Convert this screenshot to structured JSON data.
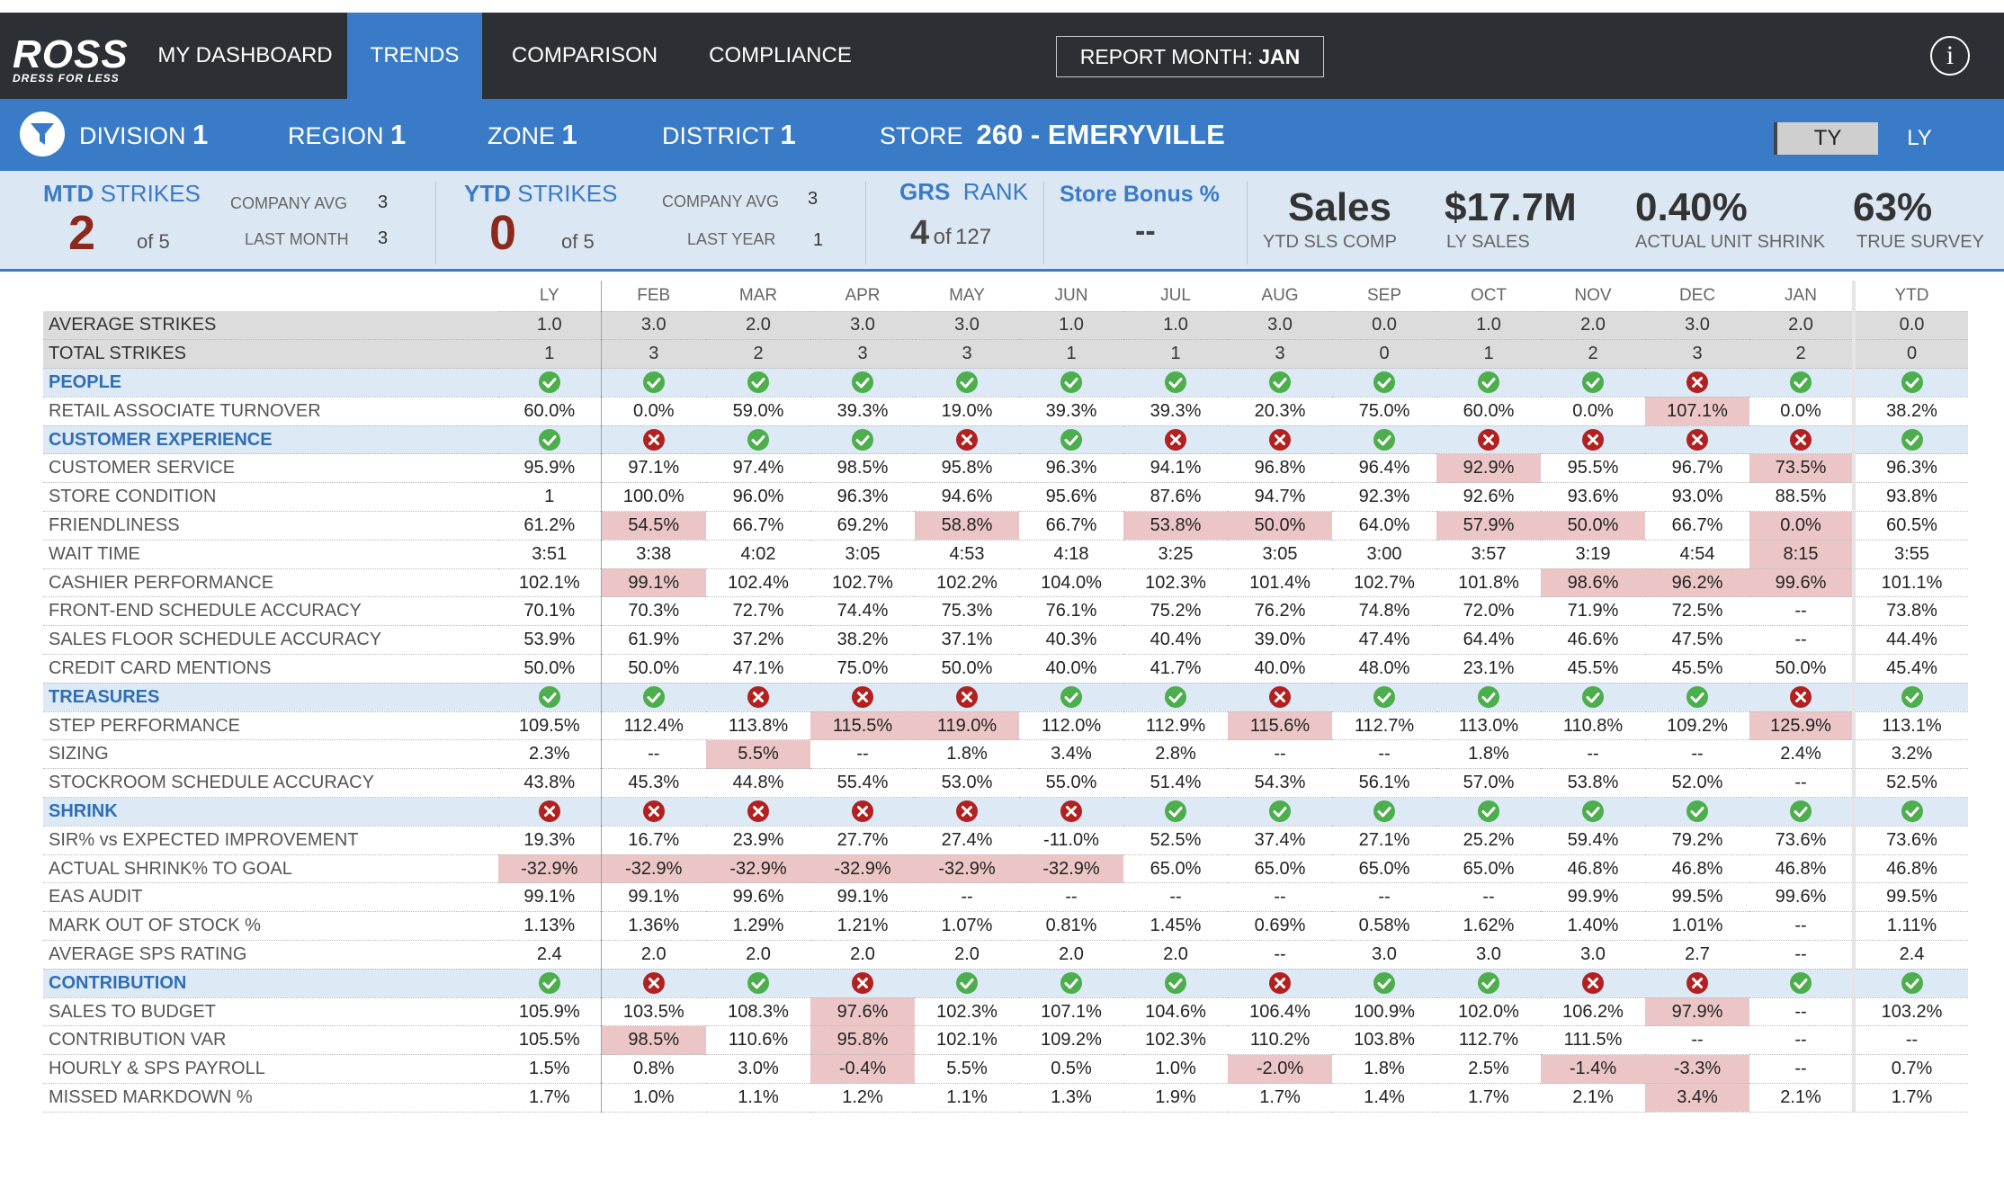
{
  "nav": {
    "logo_text": "ROSS",
    "logo_tagline": "DRESS FOR LESS",
    "items": [
      "MY DASHBOARD",
      "TRENDS",
      "COMPARISON",
      "COMPLIANCE"
    ],
    "active": "TRENDS",
    "report_month_label": "REPORT MONTH:",
    "report_month_value": "JAN",
    "info_icon": "info-icon"
  },
  "filters": {
    "division_label": "DIVISION",
    "division_value": "1",
    "region_label": "REGION",
    "region_value": "1",
    "zone_label": "ZONE",
    "zone_value": "1",
    "district_label": "DISTRICT",
    "district_value": "1",
    "store_label": "STORE",
    "store_value": "260 - EMERYVILLE",
    "ty_label": "TY",
    "ly_label": "LY"
  },
  "kpis": {
    "mtd_title_a": "MTD",
    "mtd_title_b": "STRIKES",
    "mtd_value": "2",
    "mtd_of": "of 5",
    "mtd_company_avg_label": "COMPANY AVG",
    "mtd_company_avg": "3",
    "mtd_last_month_label": "LAST MONTH",
    "mtd_last_month": "3",
    "ytd_title_a": "YTD",
    "ytd_title_b": "STRIKES",
    "ytd_value": "0",
    "ytd_of": "of 5",
    "ytd_company_avg_label": "COMPANY AVG",
    "ytd_company_avg": "3",
    "ytd_last_year_label": "LAST YEAR",
    "ytd_last_year": "1",
    "grs_title_a": "GRS",
    "grs_title_b": "RANK",
    "grs_rank": "4",
    "grs_of": "of",
    "grs_total": "127",
    "bonus_title": "Store Bonus %",
    "bonus_value": "--",
    "sales_big": "Sales",
    "sales_sub": "YTD SLS COMP",
    "ly_sales_big": "$17.7M",
    "ly_sales_sub": "LY SALES",
    "shrink_big": "0.40%",
    "shrink_sub": "ACTUAL UNIT SHRINK",
    "survey_big": "63%",
    "survey_sub": "TRUE SURVEY"
  },
  "table": {
    "columns": [
      "LY",
      "FEB",
      "MAR",
      "APR",
      "MAY",
      "JUN",
      "JUL",
      "AUG",
      "SEP",
      "OCT",
      "NOV",
      "DEC",
      "JAN",
      "YTD"
    ],
    "rows": [
      {
        "label": "AVERAGE STRIKES",
        "type": "gray",
        "values": [
          "1.0",
          "3.0",
          "2.0",
          "3.0",
          "3.0",
          "1.0",
          "1.0",
          "3.0",
          "0.0",
          "1.0",
          "2.0",
          "3.0",
          "2.0",
          "0.0"
        ]
      },
      {
        "label": "TOTAL STRIKES",
        "type": "gray",
        "values": [
          "1",
          "3",
          "2",
          "3",
          "3",
          "1",
          "1",
          "3",
          "0",
          "1",
          "2",
          "3",
          "2",
          "0"
        ]
      },
      {
        "label": "PEOPLE",
        "type": "section",
        "values": [
          "ok",
          "ok",
          "ok",
          "ok",
          "ok",
          "ok",
          "ok",
          "ok",
          "ok",
          "ok",
          "ok",
          "x",
          "ok",
          "ok"
        ]
      },
      {
        "label": "RETAIL ASSOCIATE TURNOVER",
        "values": [
          "60.0%",
          "0.0%",
          "59.0%",
          "39.3%",
          "19.0%",
          "39.3%",
          "39.3%",
          "20.3%",
          "75.0%",
          "60.0%",
          "0.0%",
          "107.1%",
          "0.0%",
          "38.2%"
        ],
        "bad": [
          11
        ]
      },
      {
        "label": "CUSTOMER EXPERIENCE",
        "type": "section",
        "values": [
          "ok",
          "x",
          "ok",
          "ok",
          "x",
          "ok",
          "x",
          "x",
          "ok",
          "x",
          "x",
          "x",
          "x",
          "ok"
        ]
      },
      {
        "label": "CUSTOMER SERVICE",
        "values": [
          "95.9%",
          "97.1%",
          "97.4%",
          "98.5%",
          "95.8%",
          "96.3%",
          "94.1%",
          "96.8%",
          "96.4%",
          "92.9%",
          "95.5%",
          "96.7%",
          "73.5%",
          "96.3%"
        ],
        "bad": [
          9,
          12
        ]
      },
      {
        "label": "STORE CONDITION",
        "values": [
          "1",
          "100.0%",
          "96.0%",
          "96.3%",
          "94.6%",
          "95.6%",
          "87.6%",
          "94.7%",
          "92.3%",
          "92.6%",
          "93.6%",
          "93.0%",
          "88.5%",
          "93.8%"
        ],
        "bad": []
      },
      {
        "label": "FRIENDLINESS",
        "values": [
          "61.2%",
          "54.5%",
          "66.7%",
          "69.2%",
          "58.8%",
          "66.7%",
          "53.8%",
          "50.0%",
          "64.0%",
          "57.9%",
          "50.0%",
          "66.7%",
          "0.0%",
          "60.5%"
        ],
        "bad": [
          1,
          4,
          6,
          7,
          9,
          10,
          12
        ]
      },
      {
        "label": "WAIT TIME",
        "values": [
          "3:51",
          "3:38",
          "4:02",
          "3:05",
          "4:53",
          "4:18",
          "3:25",
          "3:05",
          "3:00",
          "3:57",
          "3:19",
          "4:54",
          "8:15",
          "3:55"
        ],
        "bad": [
          12
        ]
      },
      {
        "label": "CASHIER PERFORMANCE",
        "values": [
          "102.1%",
          "99.1%",
          "102.4%",
          "102.7%",
          "102.2%",
          "104.0%",
          "102.3%",
          "101.4%",
          "102.7%",
          "101.8%",
          "98.6%",
          "96.2%",
          "99.6%",
          "101.1%"
        ],
        "bad": [
          1,
          10,
          11,
          12
        ]
      },
      {
        "label": "FRONT-END SCHEDULE ACCURACY",
        "values": [
          "70.1%",
          "70.3%",
          "72.7%",
          "74.4%",
          "75.3%",
          "76.1%",
          "75.2%",
          "76.2%",
          "74.8%",
          "72.0%",
          "71.9%",
          "72.5%",
          "--",
          "73.8%"
        ],
        "bad": []
      },
      {
        "label": "SALES FLOOR SCHEDULE ACCURACY",
        "values": [
          "53.9%",
          "61.9%",
          "37.2%",
          "38.2%",
          "37.1%",
          "40.3%",
          "40.4%",
          "39.0%",
          "47.4%",
          "64.4%",
          "46.6%",
          "47.5%",
          "--",
          "44.4%"
        ],
        "bad": []
      },
      {
        "label": "CREDIT CARD MENTIONS",
        "values": [
          "50.0%",
          "50.0%",
          "47.1%",
          "75.0%",
          "50.0%",
          "40.0%",
          "41.7%",
          "40.0%",
          "48.0%",
          "23.1%",
          "45.5%",
          "45.5%",
          "50.0%",
          "45.4%"
        ],
        "bad": []
      },
      {
        "label": "TREASURES",
        "type": "section",
        "values": [
          "ok",
          "ok",
          "x",
          "x",
          "x",
          "ok",
          "ok",
          "x",
          "ok",
          "ok",
          "ok",
          "ok",
          "x",
          "ok"
        ]
      },
      {
        "label": "STEP PERFORMANCE",
        "values": [
          "109.5%",
          "112.4%",
          "113.8%",
          "115.5%",
          "119.0%",
          "112.0%",
          "112.9%",
          "115.6%",
          "112.7%",
          "113.0%",
          "110.8%",
          "109.2%",
          "125.9%",
          "113.1%"
        ],
        "bad": [
          3,
          4,
          7,
          12
        ]
      },
      {
        "label": "SIZING",
        "values": [
          "2.3%",
          "--",
          "5.5%",
          "--",
          "1.8%",
          "3.4%",
          "2.8%",
          "--",
          "--",
          "1.8%",
          "--",
          "--",
          "2.4%",
          "3.2%"
        ],
        "bad": [
          2
        ]
      },
      {
        "label": "STOCKROOM SCHEDULE ACCURACY",
        "values": [
          "43.8%",
          "45.3%",
          "44.8%",
          "55.4%",
          "53.0%",
          "55.0%",
          "51.4%",
          "54.3%",
          "56.1%",
          "57.0%",
          "53.8%",
          "52.0%",
          "--",
          "52.5%"
        ],
        "bad": []
      },
      {
        "label": "SHRINK",
        "type": "section",
        "values": [
          "x",
          "x",
          "x",
          "x",
          "x",
          "x",
          "ok",
          "ok",
          "ok",
          "ok",
          "ok",
          "ok",
          "ok",
          "ok"
        ]
      },
      {
        "label": "SIR% vs EXPECTED IMPROVEMENT",
        "values": [
          "19.3%",
          "16.7%",
          "23.9%",
          "27.7%",
          "27.4%",
          "-11.0%",
          "52.5%",
          "37.4%",
          "27.1%",
          "25.2%",
          "59.4%",
          "79.2%",
          "73.6%",
          "73.6%"
        ],
        "bad": []
      },
      {
        "label": "ACTUAL SHRINK% TO GOAL",
        "values": [
          "-32.9%",
          "-32.9%",
          "-32.9%",
          "-32.9%",
          "-32.9%",
          "-32.9%",
          "65.0%",
          "65.0%",
          "65.0%",
          "65.0%",
          "46.8%",
          "46.8%",
          "46.8%",
          "46.8%"
        ],
        "bad": [
          0,
          1,
          2,
          3,
          4,
          5
        ]
      },
      {
        "label": "EAS AUDIT",
        "values": [
          "99.1%",
          "99.1%",
          "99.6%",
          "99.1%",
          "--",
          "--",
          "--",
          "--",
          "--",
          "--",
          "99.9%",
          "99.5%",
          "99.6%",
          "99.5%"
        ],
        "bad": []
      },
      {
        "label": "MARK OUT OF STOCK %",
        "values": [
          "1.13%",
          "1.36%",
          "1.29%",
          "1.21%",
          "1.07%",
          "0.81%",
          "1.45%",
          "0.69%",
          "0.58%",
          "1.62%",
          "1.40%",
          "1.01%",
          "--",
          "1.11%"
        ],
        "bad": []
      },
      {
        "label": "AVERAGE SPS RATING",
        "values": [
          "2.4",
          "2.0",
          "2.0",
          "2.0",
          "2.0",
          "2.0",
          "2.0",
          "--",
          "3.0",
          "3.0",
          "3.0",
          "2.7",
          "--",
          "2.4"
        ],
        "bad": []
      },
      {
        "label": "CONTRIBUTION",
        "type": "section",
        "values": [
          "ok",
          "x",
          "ok",
          "x",
          "ok",
          "ok",
          "ok",
          "x",
          "ok",
          "ok",
          "x",
          "x",
          "ok",
          "ok"
        ]
      },
      {
        "label": "SALES TO BUDGET",
        "values": [
          "105.9%",
          "103.5%",
          "108.3%",
          "97.6%",
          "102.3%",
          "107.1%",
          "104.6%",
          "106.4%",
          "100.9%",
          "102.0%",
          "106.2%",
          "97.9%",
          "--",
          "103.2%"
        ],
        "bad": [
          3,
          11
        ]
      },
      {
        "label": "CONTRIBUTION VAR",
        "values": [
          "105.5%",
          "98.5%",
          "110.6%",
          "95.8%",
          "102.1%",
          "109.2%",
          "102.3%",
          "110.2%",
          "103.8%",
          "112.7%",
          "111.5%",
          "--",
          "--",
          "--"
        ],
        "bad": [
          1,
          3
        ]
      },
      {
        "label": "HOURLY & SPS PAYROLL",
        "values": [
          "1.5%",
          "0.8%",
          "3.0%",
          "-0.4%",
          "5.5%",
          "0.5%",
          "1.0%",
          "-2.0%",
          "1.8%",
          "2.5%",
          "-1.4%",
          "-3.3%",
          "--",
          "0.7%"
        ],
        "bad": [
          3,
          7,
          10,
          11
        ]
      },
      {
        "label": "MISSED MARKDOWN %",
        "values": [
          "1.7%",
          "1.0%",
          "1.1%",
          "1.2%",
          "1.1%",
          "1.3%",
          "1.9%",
          "1.7%",
          "1.4%",
          "1.7%",
          "2.1%",
          "3.4%",
          "2.1%",
          "1.7%"
        ],
        "bad": [
          11
        ]
      }
    ]
  }
}
